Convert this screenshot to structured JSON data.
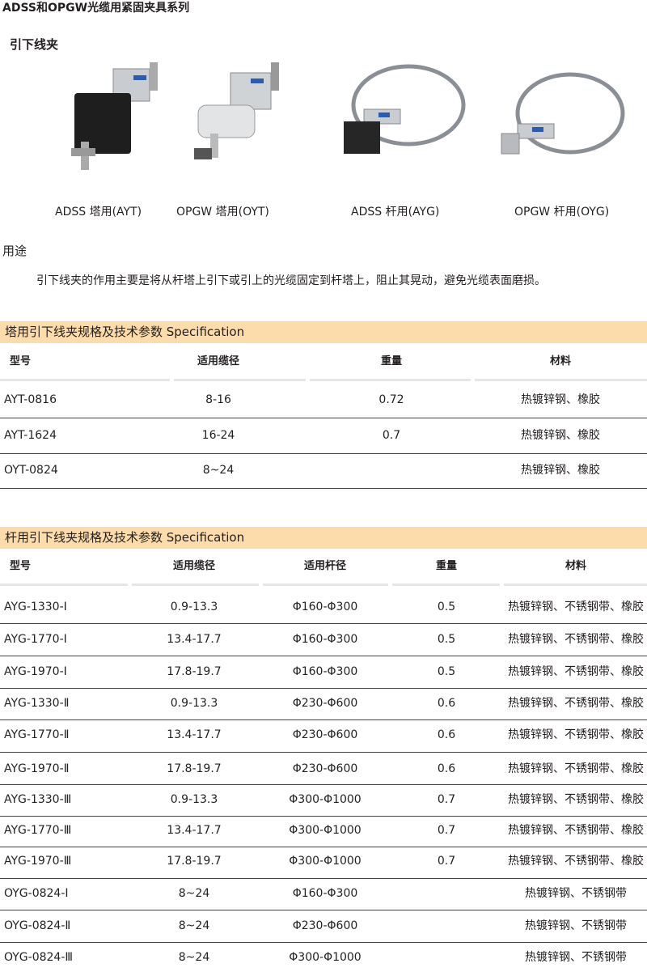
{
  "header": {
    "title": "ADSS和OPGW光缆用紧固夹具系列",
    "section": "引下线夹"
  },
  "products": [
    {
      "label": "ADSS 塔用(AYT)"
    },
    {
      "label": "OPGW 塔用(OYT)"
    },
    {
      "label": "ADSS 杆用(AYG)"
    },
    {
      "label": "OPGW 杆用(OYG)"
    }
  ],
  "usage": {
    "heading": "用途",
    "text": "引下线夹的作用主要是将从杆塔上引下或引上的光缆固定到杆塔上，阻止其晃动，避免光缆表面磨损。"
  },
  "table1": {
    "title": "塔用引下线夹规格及技术参数  Specification",
    "headers": [
      "型号",
      "适用缆径",
      "重量",
      "材料"
    ],
    "rows": [
      [
        "AYT-0816",
        "8-16",
        "0.72",
        "热镀锌钢、橡胶"
      ],
      [
        "AYT-1624",
        "16-24",
        "0.7",
        "热镀锌钢、橡胶"
      ],
      [
        "OYT-0824",
        "8~24",
        null,
        "热镀锌钢、橡胶"
      ]
    ]
  },
  "table2": {
    "title": "杆用引下线夹规格及技术参数  Specification",
    "headers": [
      "型号",
      "适用缆径",
      "适用杆径",
      "重量",
      "材料"
    ],
    "rows": [
      [
        "AYG-1330-Ⅰ",
        "0.9-13.3",
        "Φ160-Φ300",
        "0.5",
        "热镀锌钢、不锈钢带、橡胶"
      ],
      [
        "AYG-1770-Ⅰ",
        "13.4-17.7",
        "Φ160-Φ300",
        "0.5",
        "热镀锌钢、不锈钢带、橡胶"
      ],
      [
        "AYG-1970-Ⅰ",
        "17.8-19.7",
        "Φ160-Φ300",
        "0.5",
        "热镀锌钢、不锈钢带、橡胶"
      ],
      [
        "AYG-1330-Ⅱ",
        "0.9-13.3",
        "Φ230-Φ600",
        "0.6",
        "热镀锌钢、不锈钢带、橡胶"
      ],
      [
        "AYG-1770-Ⅱ",
        "13.4-17.7",
        "Φ230-Φ600",
        "0.6",
        "热镀锌钢、不锈钢带、橡胶"
      ],
      [
        "AYG-1970-Ⅱ",
        "17.8-19.7",
        "Φ230-Φ600",
        "0.6",
        "热镀锌钢、不锈钢带、橡胶"
      ],
      [
        "AYG-1330-Ⅲ",
        "0.9-13.3",
        "Φ300-Φ1000",
        "0.7",
        "热镀锌钢、不锈钢带、橡胶"
      ],
      [
        "AYG-1770-Ⅲ",
        "13.4-17.7",
        "Φ300-Φ1000",
        "0.7",
        "热镀锌钢、不锈钢带、橡胶"
      ],
      [
        "AYG-1970-Ⅲ",
        "17.8-19.7",
        "Φ300-Φ1000",
        "0.7",
        "热镀锌钢、不锈钢带、橡胶"
      ],
      [
        "OYG-0824-Ⅰ",
        "8~24",
        "Φ160-Φ300",
        null,
        "热镀锌钢、不锈钢带"
      ],
      [
        "OYG-0824-Ⅱ",
        "8~24",
        "Φ230-Φ600",
        null,
        "热镀锌钢、不锈钢带"
      ],
      [
        "OYG-0824-Ⅲ",
        "8~24",
        "Φ300-Φ1000",
        null,
        "热镀锌钢、不锈钢带"
      ]
    ]
  }
}
